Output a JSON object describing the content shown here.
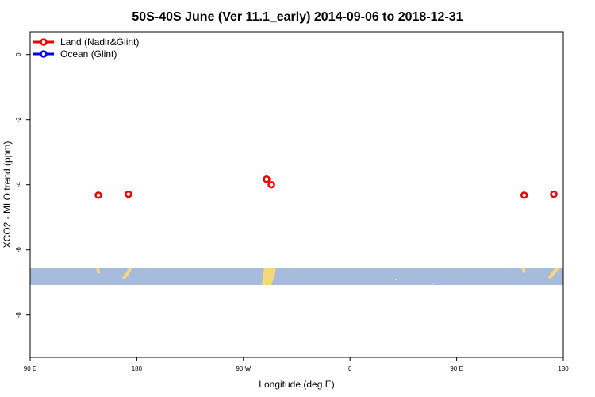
{
  "chart_data": {
    "type": "scatter",
    "title": "50S-40S June (Ver 11.1_early)   2014-09-06 to 2018-12-31",
    "xlabel": "Longitude (deg E)",
    "ylabel": "XCO2 - MLO trend (ppm)",
    "series": [
      {
        "name": "Land (Nadir&Glint)",
        "color": "#ee0000",
        "x": [
          147.6,
          173,
          289.6,
          293.6,
          507,
          532
        ],
        "values": [
          -4.32,
          -4.29,
          -3.83,
          -4.0,
          -4.32,
          -4.29
        ]
      },
      {
        "name": "Ocean (Glint)",
        "color": "#0000ee",
        "x": [],
        "values": []
      }
    ],
    "xlim": [
      90,
      540
    ],
    "xticks": [
      {
        "value": 90,
        "label": "90 E"
      },
      180,
      {
        "value": 270,
        "label": "90 W"
      },
      {
        "value": 360,
        "label": "0"
      },
      {
        "value": 450,
        "label": "90 E"
      },
      {
        "value": 540,
        "label": "180"
      }
    ],
    "ylim": [
      -9.3,
      0.7
    ],
    "yticks": [
      0,
      -2,
      -4,
      -6,
      -8
    ],
    "legend": "top-left"
  }
}
